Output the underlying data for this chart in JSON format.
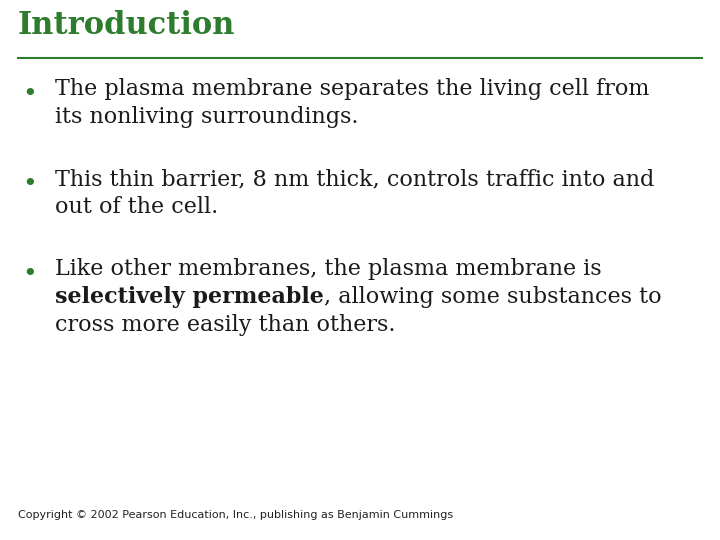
{
  "title": "Introduction",
  "title_color": "#2e7d2e",
  "title_fontsize": 22,
  "line_color": "#2e7d2e",
  "bg_color": "#ffffff",
  "bullet_color": "#2e7d2e",
  "text_color": "#1a1a1a",
  "copyright": "Copyright © 2002 Pearson Education, Inc., publishing as Benjamin Cummings",
  "copyright_fontsize": 8,
  "text_fontsize": 16,
  "bullet1_line1": "The plasma membrane separates the living cell from",
  "bullet1_line2": "its nonliving surroundings.",
  "bullet2_line1": "This thin barrier, 8 nm thick, controls traffic into and",
  "bullet2_line2": "out of the cell.",
  "bullet3_line1": "Like other membranes, the plasma membrane is",
  "bullet3_bold": "selectively permeable",
  "bullet3_after_bold": ", allowing some substances to",
  "bullet3_line3": "cross more easily than others."
}
